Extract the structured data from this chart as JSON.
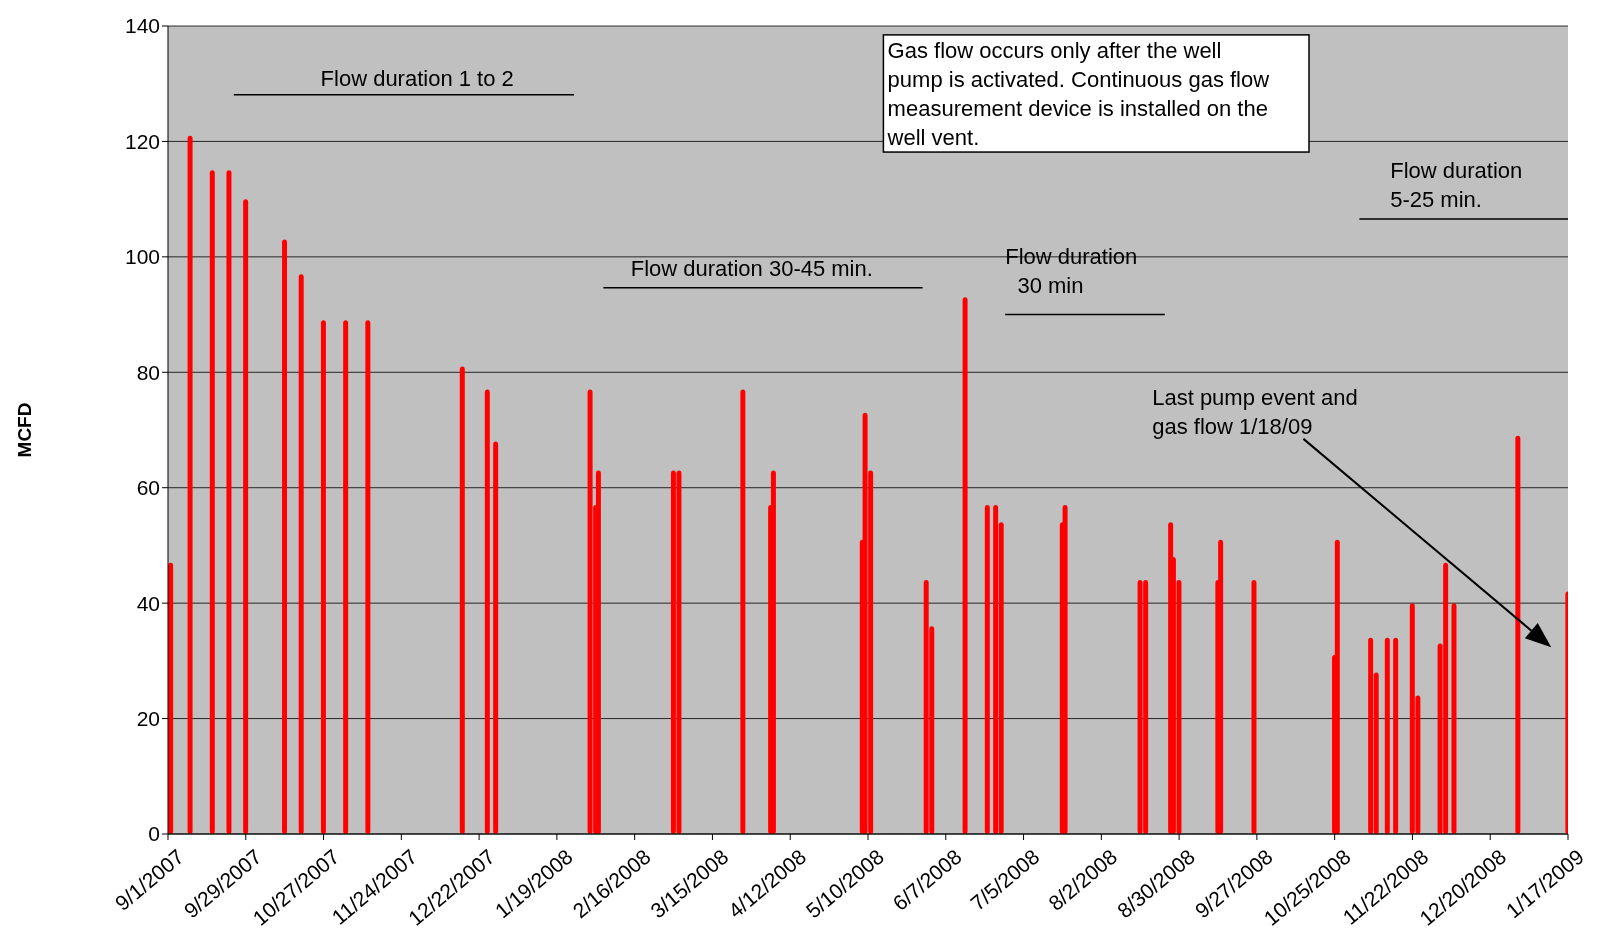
{
  "chart_data": {
    "type": "bar",
    "ylabel": "MCFD",
    "x": [
      "2007-09-02",
      "2007-09-09",
      "2007-09-17",
      "2007-09-23",
      "2007-09-29",
      "2007-10-13",
      "2007-10-19",
      "2007-10-27",
      "2007-11-04",
      "2007-11-12",
      "2007-12-16",
      "2007-12-25",
      "2007-12-28",
      "2008-01-31",
      "2008-02-02",
      "2008-02-03",
      "2008-03-01",
      "2008-03-03",
      "2008-03-26",
      "2008-04-05",
      "2008-04-06",
      "2008-05-08",
      "2008-05-09",
      "2008-05-11",
      "2008-05-31",
      "2008-06-02",
      "2008-06-14",
      "2008-06-22",
      "2008-06-25",
      "2008-06-27",
      "2008-07-19",
      "2008-07-20",
      "2008-08-16",
      "2008-08-18",
      "2008-08-27",
      "2008-08-28",
      "2008-08-30",
      "2008-09-13",
      "2008-09-14",
      "2008-09-26",
      "2008-10-25",
      "2008-10-26",
      "2008-11-07",
      "2008-11-09",
      "2008-11-13",
      "2008-11-16",
      "2008-11-22",
      "2008-11-24",
      "2008-12-02",
      "2008-12-04",
      "2008-12-07",
      "2008-12-30",
      "2009-01-17"
    ],
    "values": [
      47,
      121,
      115,
      115,
      110,
      103,
      97,
      89,
      89,
      89,
      81,
      77,
      68,
      77,
      57,
      63,
      63,
      63,
      77,
      57,
      63,
      51,
      73,
      63,
      44,
      36,
      93,
      57,
      57,
      54,
      54,
      57,
      44,
      44,
      54,
      48,
      44,
      44,
      51,
      44,
      31,
      51,
      34,
      28,
      34,
      34,
      40,
      24,
      33,
      47,
      40,
      69,
      42
    ],
    "color": "#ff0000",
    "xlim": [
      "2007-09-01",
      "2009-01-17"
    ],
    "xticks": [
      {
        "value": "2007-09-01",
        "label": "9/1/2007"
      },
      {
        "value": "2007-09-29",
        "label": "9/29/2007"
      },
      {
        "value": "2007-10-27",
        "label": "10/27/2007"
      },
      {
        "value": "2007-11-24",
        "label": "11/24/2007"
      },
      {
        "value": "2007-12-22",
        "label": "12/22/2007"
      },
      {
        "value": "2008-01-19",
        "label": "1/19/2008"
      },
      {
        "value": "2008-02-16",
        "label": "2/16/2008"
      },
      {
        "value": "2008-03-15",
        "label": "3/15/2008"
      },
      {
        "value": "2008-04-12",
        "label": "4/12/2008"
      },
      {
        "value": "2008-05-10",
        "label": "5/10/2008"
      },
      {
        "value": "2008-06-07",
        "label": "6/7/2008"
      },
      {
        "value": "2008-07-05",
        "label": "7/5/2008"
      },
      {
        "value": "2008-08-02",
        "label": "8/2/2008"
      },
      {
        "value": "2008-08-30",
        "label": "8/30/2008"
      },
      {
        "value": "2008-09-27",
        "label": "9/27/2008"
      },
      {
        "value": "2008-10-25",
        "label": "10/25/2008"
      },
      {
        "value": "2008-11-22",
        "label": "11/22/2008"
      },
      {
        "value": "2008-12-20",
        "label": "12/20/2008"
      },
      {
        "value": "2009-01-17",
        "label": "1/17/2009"
      }
    ],
    "ylim": [
      0,
      140
    ],
    "yticks": [
      0,
      20,
      40,
      60,
      80,
      100,
      120,
      140
    ],
    "grid": "y",
    "legend": false,
    "annotations": [
      "Flow duration 1 to 2",
      "Flow duration 30-45 min.",
      "Flow duration\n  30 min",
      "Flow duration\n5-25 min.",
      "Gas flow occurs only after the well\npump is activated. Continuous gas flow\nmeasurement device is installed on the\nwell vent.",
      "Last pump event and\ngas flow 1/18/09"
    ]
  }
}
